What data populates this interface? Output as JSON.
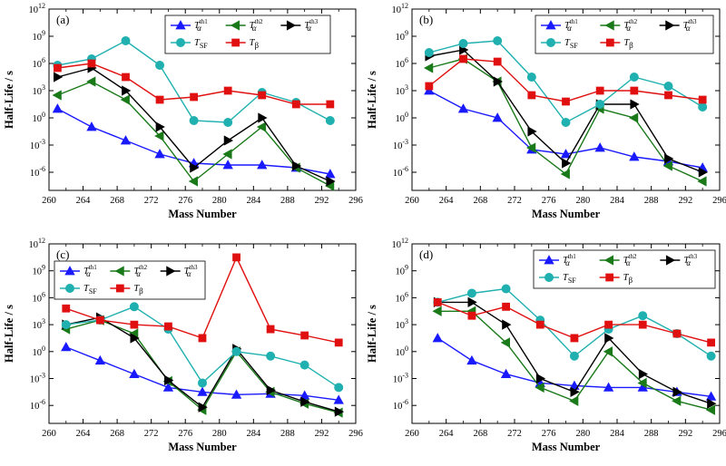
{
  "chart_data": [
    {
      "type": "line",
      "panel_label": "(a)",
      "xlabel": "Mass Number",
      "ylabel": "Half-Life / s",
      "xlim": [
        260,
        296
      ],
      "ylim_log10": [
        -8,
        12
      ],
      "y_scale": "log",
      "xticks": [
        "260",
        "264",
        "268",
        "272",
        "276",
        "280",
        "284",
        "288",
        "292",
        "296"
      ],
      "yticks": [
        "10^-6",
        "10^-3",
        "10^0",
        "10^3",
        "10^6",
        "10^9",
        "10^12"
      ],
      "legend_placement": "top-right",
      "series": [
        {
          "name": "T_alpha^th1",
          "color": "#1a1aff",
          "marker": "triangle-up",
          "x": [
            261,
            265,
            269,
            273,
            277,
            281,
            285,
            289,
            293
          ],
          "log10_y": [
            1.0,
            -1.0,
            -2.5,
            -4.0,
            -5.0,
            -5.2,
            -5.2,
            -5.5,
            -6.2
          ]
        },
        {
          "name": "T_alpha^th2",
          "color": "#1a7a1a",
          "marker": "triangle-left",
          "x": [
            261,
            265,
            269,
            273,
            277,
            281,
            285,
            289,
            293
          ],
          "log10_y": [
            2.5,
            4.0,
            2.0,
            -2.0,
            -7.0,
            -4.0,
            -1.0,
            -5.5,
            -7.5
          ]
        },
        {
          "name": "T_alpha^th3",
          "color": "#000000",
          "marker": "triangle-right",
          "x": [
            261,
            265,
            269,
            273,
            277,
            281,
            285,
            289,
            293
          ],
          "log10_y": [
            4.5,
            5.5,
            3.0,
            -1.0,
            -5.5,
            -2.5,
            0.0,
            -5.3,
            -7.0
          ]
        },
        {
          "name": "T_SF",
          "color": "#20b0b0",
          "marker": "circle",
          "x": [
            261,
            265,
            269,
            273,
            277,
            281,
            285,
            289,
            293
          ],
          "log10_y": [
            5.8,
            6.5,
            8.5,
            5.8,
            -0.3,
            -0.5,
            2.8,
            1.7,
            -0.3
          ]
        },
        {
          "name": "T_beta",
          "color": "#e01010",
          "marker": "square",
          "x": [
            261,
            265,
            269,
            273,
            277,
            281,
            285,
            289,
            293
          ],
          "log10_y": [
            5.5,
            6.0,
            4.5,
            2.0,
            2.3,
            3.0,
            2.5,
            1.5,
            1.5
          ]
        }
      ]
    },
    {
      "type": "line",
      "panel_label": "(b)",
      "xlabel": "Mass Number",
      "ylabel": "Half-Life / s",
      "xlim": [
        260,
        296
      ],
      "ylim_log10": [
        -8,
        12
      ],
      "y_scale": "log",
      "xticks": [
        "260",
        "264",
        "268",
        "272",
        "276",
        "280",
        "284",
        "288",
        "292",
        "296"
      ],
      "yticks": [
        "10^-6",
        "10^-3",
        "10^0",
        "10^3",
        "10^6",
        "10^9",
        "10^12"
      ],
      "legend_placement": "top-right",
      "series": [
        {
          "name": "T_alpha^th1",
          "color": "#1a1aff",
          "marker": "triangle-up",
          "x": [
            262,
            266,
            270,
            274,
            278,
            282,
            286,
            290,
            294
          ],
          "log10_y": [
            3.0,
            1.0,
            0.0,
            -3.5,
            -4.0,
            -3.3,
            -4.3,
            -4.8,
            -5.5
          ]
        },
        {
          "name": "T_alpha^th2",
          "color": "#1a7a1a",
          "marker": "triangle-left",
          "x": [
            262,
            266,
            270,
            274,
            278,
            282,
            286,
            290,
            294
          ],
          "log10_y": [
            5.5,
            6.5,
            4.0,
            -3.3,
            -6.2,
            1.0,
            0.0,
            -5.3,
            -7.0
          ]
        },
        {
          "name": "T_alpha^th3",
          "color": "#000000",
          "marker": "triangle-right",
          "x": [
            262,
            266,
            270,
            274,
            278,
            282,
            286,
            290,
            294
          ],
          "log10_y": [
            6.8,
            7.5,
            4.0,
            -1.5,
            -5.0,
            1.5,
            1.5,
            -4.5,
            -6.0
          ]
        },
        {
          "name": "T_SF",
          "color": "#20b0b0",
          "marker": "circle",
          "x": [
            262,
            266,
            270,
            274,
            278,
            282,
            286,
            290,
            294
          ],
          "log10_y": [
            7.2,
            8.2,
            8.5,
            4.5,
            -0.5,
            1.5,
            4.5,
            3.5,
            1.2
          ]
        },
        {
          "name": "T_beta",
          "color": "#e01010",
          "marker": "square",
          "x": [
            262,
            266,
            270,
            274,
            278,
            282,
            286,
            290,
            294
          ],
          "log10_y": [
            3.5,
            6.5,
            6.2,
            2.5,
            1.8,
            3.0,
            3.0,
            2.5,
            2.0
          ]
        }
      ]
    },
    {
      "type": "line",
      "panel_label": "(c)",
      "xlabel": "Mass Number",
      "ylabel": "Half-Life / s",
      "xlim": [
        260,
        296
      ],
      "ylim_log10": [
        -8,
        12
      ],
      "y_scale": "log",
      "xticks": [
        "260",
        "264",
        "268",
        "272",
        "276",
        "280",
        "284",
        "288",
        "292",
        "296"
      ],
      "yticks": [
        "10^-6",
        "10^-3",
        "10^0",
        "10^3",
        "10^6",
        "10^9",
        "10^12"
      ],
      "legend_placement": "top-left",
      "series": [
        {
          "name": "T_alpha^th1",
          "color": "#1a1aff",
          "marker": "triangle-up",
          "x": [
            262,
            266,
            270,
            274,
            278,
            282,
            286,
            290,
            294
          ],
          "log10_y": [
            0.5,
            -1.0,
            -2.5,
            -4.0,
            -4.5,
            -4.8,
            -4.7,
            -4.9,
            -5.4
          ]
        },
        {
          "name": "T_alpha^th2",
          "color": "#1a7a1a",
          "marker": "triangle-left",
          "x": [
            262,
            266,
            270,
            274,
            278,
            282,
            286,
            290,
            294
          ],
          "log10_y": [
            2.5,
            3.5,
            2.0,
            -3.3,
            -6.5,
            0.0,
            -4.5,
            -5.8,
            -6.8
          ]
        },
        {
          "name": "T_alpha^th3",
          "color": "#000000",
          "marker": "triangle-right",
          "x": [
            262,
            266,
            270,
            274,
            278,
            282,
            286,
            290,
            294
          ],
          "log10_y": [
            3.0,
            3.8,
            1.5,
            -3.2,
            -6.2,
            0.3,
            -4.3,
            -5.6,
            -6.7
          ]
        },
        {
          "name": "T_SF",
          "color": "#20b0b0",
          "marker": "circle",
          "x": [
            262,
            266,
            270,
            274,
            278,
            282,
            286,
            290,
            294
          ],
          "log10_y": [
            3.0,
            3.5,
            5.0,
            2.5,
            -3.5,
            0.0,
            -0.5,
            -1.5,
            -4.0
          ]
        },
        {
          "name": "T_beta",
          "color": "#e01010",
          "marker": "square",
          "x": [
            262,
            266,
            270,
            274,
            278,
            282,
            286,
            290,
            294
          ],
          "log10_y": [
            4.8,
            3.5,
            3.0,
            2.8,
            1.5,
            10.5,
            2.5,
            1.8,
            1.0
          ]
        }
      ]
    },
    {
      "type": "line",
      "panel_label": "(d)",
      "xlabel": "Mass Number",
      "ylabel": "Half-Life / s",
      "xlim": [
        260,
        296
      ],
      "ylim_log10": [
        -8,
        12
      ],
      "y_scale": "log",
      "xticks": [
        "260",
        "264",
        "268",
        "272",
        "276",
        "280",
        "284",
        "288",
        "292",
        "296"
      ],
      "yticks": [
        "10^-6",
        "10^-3",
        "10^0",
        "10^3",
        "10^6",
        "10^9",
        "10^12"
      ],
      "legend_placement": "top-right",
      "series": [
        {
          "name": "T_alpha^th1",
          "color": "#1a1aff",
          "marker": "triangle-up",
          "x": [
            263,
            267,
            271,
            275,
            279,
            283,
            287,
            291,
            295
          ],
          "log10_y": [
            1.5,
            -1.0,
            -2.5,
            -3.5,
            -3.8,
            -4.0,
            -4.0,
            -4.5,
            -5.0
          ]
        },
        {
          "name": "T_alpha^th2",
          "color": "#1a7a1a",
          "marker": "triangle-left",
          "x": [
            263,
            267,
            271,
            275,
            279,
            283,
            287,
            291,
            295
          ],
          "log10_y": [
            4.5,
            4.5,
            1.0,
            -4.0,
            -5.5,
            0.0,
            -3.5,
            -5.5,
            -6.5
          ]
        },
        {
          "name": "T_alpha^th3",
          "color": "#000000",
          "marker": "triangle-right",
          "x": [
            263,
            267,
            271,
            275,
            279,
            283,
            287,
            291,
            295
          ],
          "log10_y": [
            5.5,
            5.5,
            3.0,
            -3.0,
            -4.5,
            1.5,
            -2.5,
            -4.5,
            -5.8
          ]
        },
        {
          "name": "T_SF",
          "color": "#20b0b0",
          "marker": "circle",
          "x": [
            263,
            267,
            271,
            275,
            279,
            283,
            287,
            291,
            295
          ],
          "log10_y": [
            5.5,
            6.5,
            7.0,
            3.5,
            -0.5,
            2.5,
            4.0,
            2.0,
            -0.5
          ]
        },
        {
          "name": "T_beta",
          "color": "#e01010",
          "marker": "square",
          "x": [
            263,
            267,
            271,
            275,
            279,
            283,
            287,
            291,
            295
          ],
          "log10_y": [
            5.5,
            4.0,
            5.0,
            3.0,
            1.5,
            3.0,
            3.0,
            2.0,
            1.0
          ]
        }
      ]
    }
  ]
}
